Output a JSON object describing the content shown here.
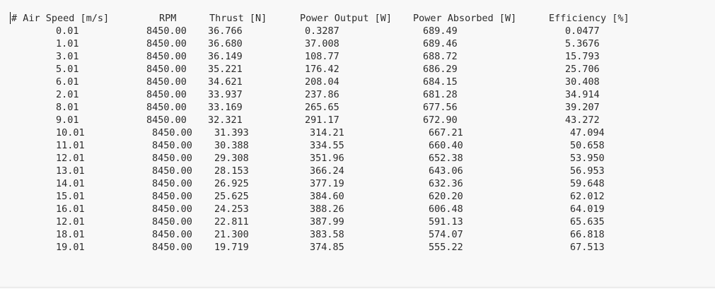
{
  "document": {
    "headers": [
      "# Air Speed [m/s]",
      "RPM",
      "Thrust [N]",
      "Power Output [W]",
      "Power Absorbed [W]",
      "Efficiency [%]"
    ],
    "rows": [
      [
        "0.01",
        "8450.00",
        "36.766",
        "0.3287",
        "689.49",
        "0.0477"
      ],
      [
        "1.01",
        "8450.00",
        "36.680",
        "37.008",
        "689.46",
        "5.3676"
      ],
      [
        "3.01",
        "8450.00",
        "36.149",
        "108.77",
        "688.72",
        "15.793"
      ],
      [
        "5.01",
        "8450.00",
        "35.221",
        "176.42",
        "686.29",
        "25.706"
      ],
      [
        "6.01",
        "8450.00",
        "34.621",
        "208.04",
        "684.15",
        "30.408"
      ],
      [
        "2.01",
        "8450.00",
        "33.937",
        "237.86",
        "681.28",
        "34.914"
      ],
      [
        "8.01",
        "8450.00",
        "33.169",
        "265.65",
        "677.56",
        "39.207"
      ],
      [
        "9.01",
        "8450.00",
        "32.321",
        "291.17",
        "672.90",
        "43.272"
      ],
      [
        "10.01",
        "8450.00",
        "31.393",
        "314.21",
        "667.21",
        "47.094"
      ],
      [
        "11.01",
        "8450.00",
        "30.388",
        "334.55",
        "660.40",
        "50.658"
      ],
      [
        "12.01",
        "8450.00",
        "29.308",
        "351.96",
        "652.38",
        "53.950"
      ],
      [
        "13.01",
        "8450.00",
        "28.153",
        "366.24",
        "643.06",
        "56.953"
      ],
      [
        "14.01",
        "8450.00",
        "26.925",
        "377.19",
        "632.36",
        "59.648"
      ],
      [
        "15.01",
        "8450.00",
        "25.625",
        "384.60",
        "620.20",
        "62.012"
      ],
      [
        "16.01",
        "8450.00",
        "24.253",
        "388.26",
        "606.48",
        "64.019"
      ],
      [
        "12.01",
        "8450.00",
        "22.811",
        "387.99",
        "591.13",
        "65.635"
      ],
      [
        "18.01",
        "8450.00",
        "21.300",
        "383.58",
        "574.07",
        "66.818"
      ],
      [
        "19.01",
        "8450.00",
        "19.719",
        "374.85",
        "555.22",
        "67.513"
      ]
    ]
  }
}
